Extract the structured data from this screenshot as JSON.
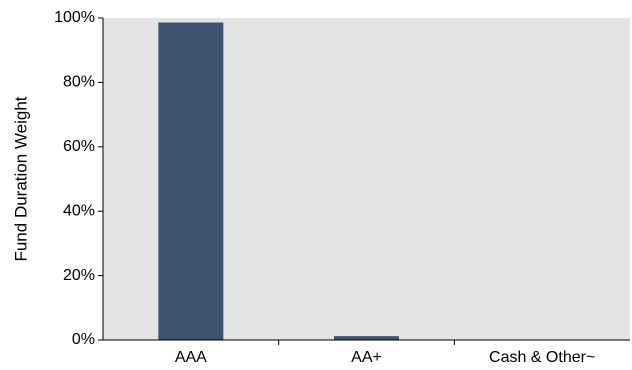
{
  "chart_data": {
    "type": "bar",
    "title": "",
    "xlabel": "",
    "ylabel": "Fund Duration Weight",
    "categories": [
      "AAA",
      "AA+",
      "Cash & Other~"
    ],
    "values": [
      98.6,
      1.2,
      0.0
    ],
    "ylim": [
      0,
      100
    ],
    "yticks": [
      0,
      20,
      40,
      60,
      80,
      100
    ],
    "ytick_labels": [
      "0%",
      "20%",
      "40%",
      "60%",
      "80%",
      "100%"
    ],
    "grid": false,
    "legend": "none",
    "colors": {
      "bar": "#3f526f",
      "plot_background": "#e3e3e3",
      "axis": "#000000"
    }
  }
}
